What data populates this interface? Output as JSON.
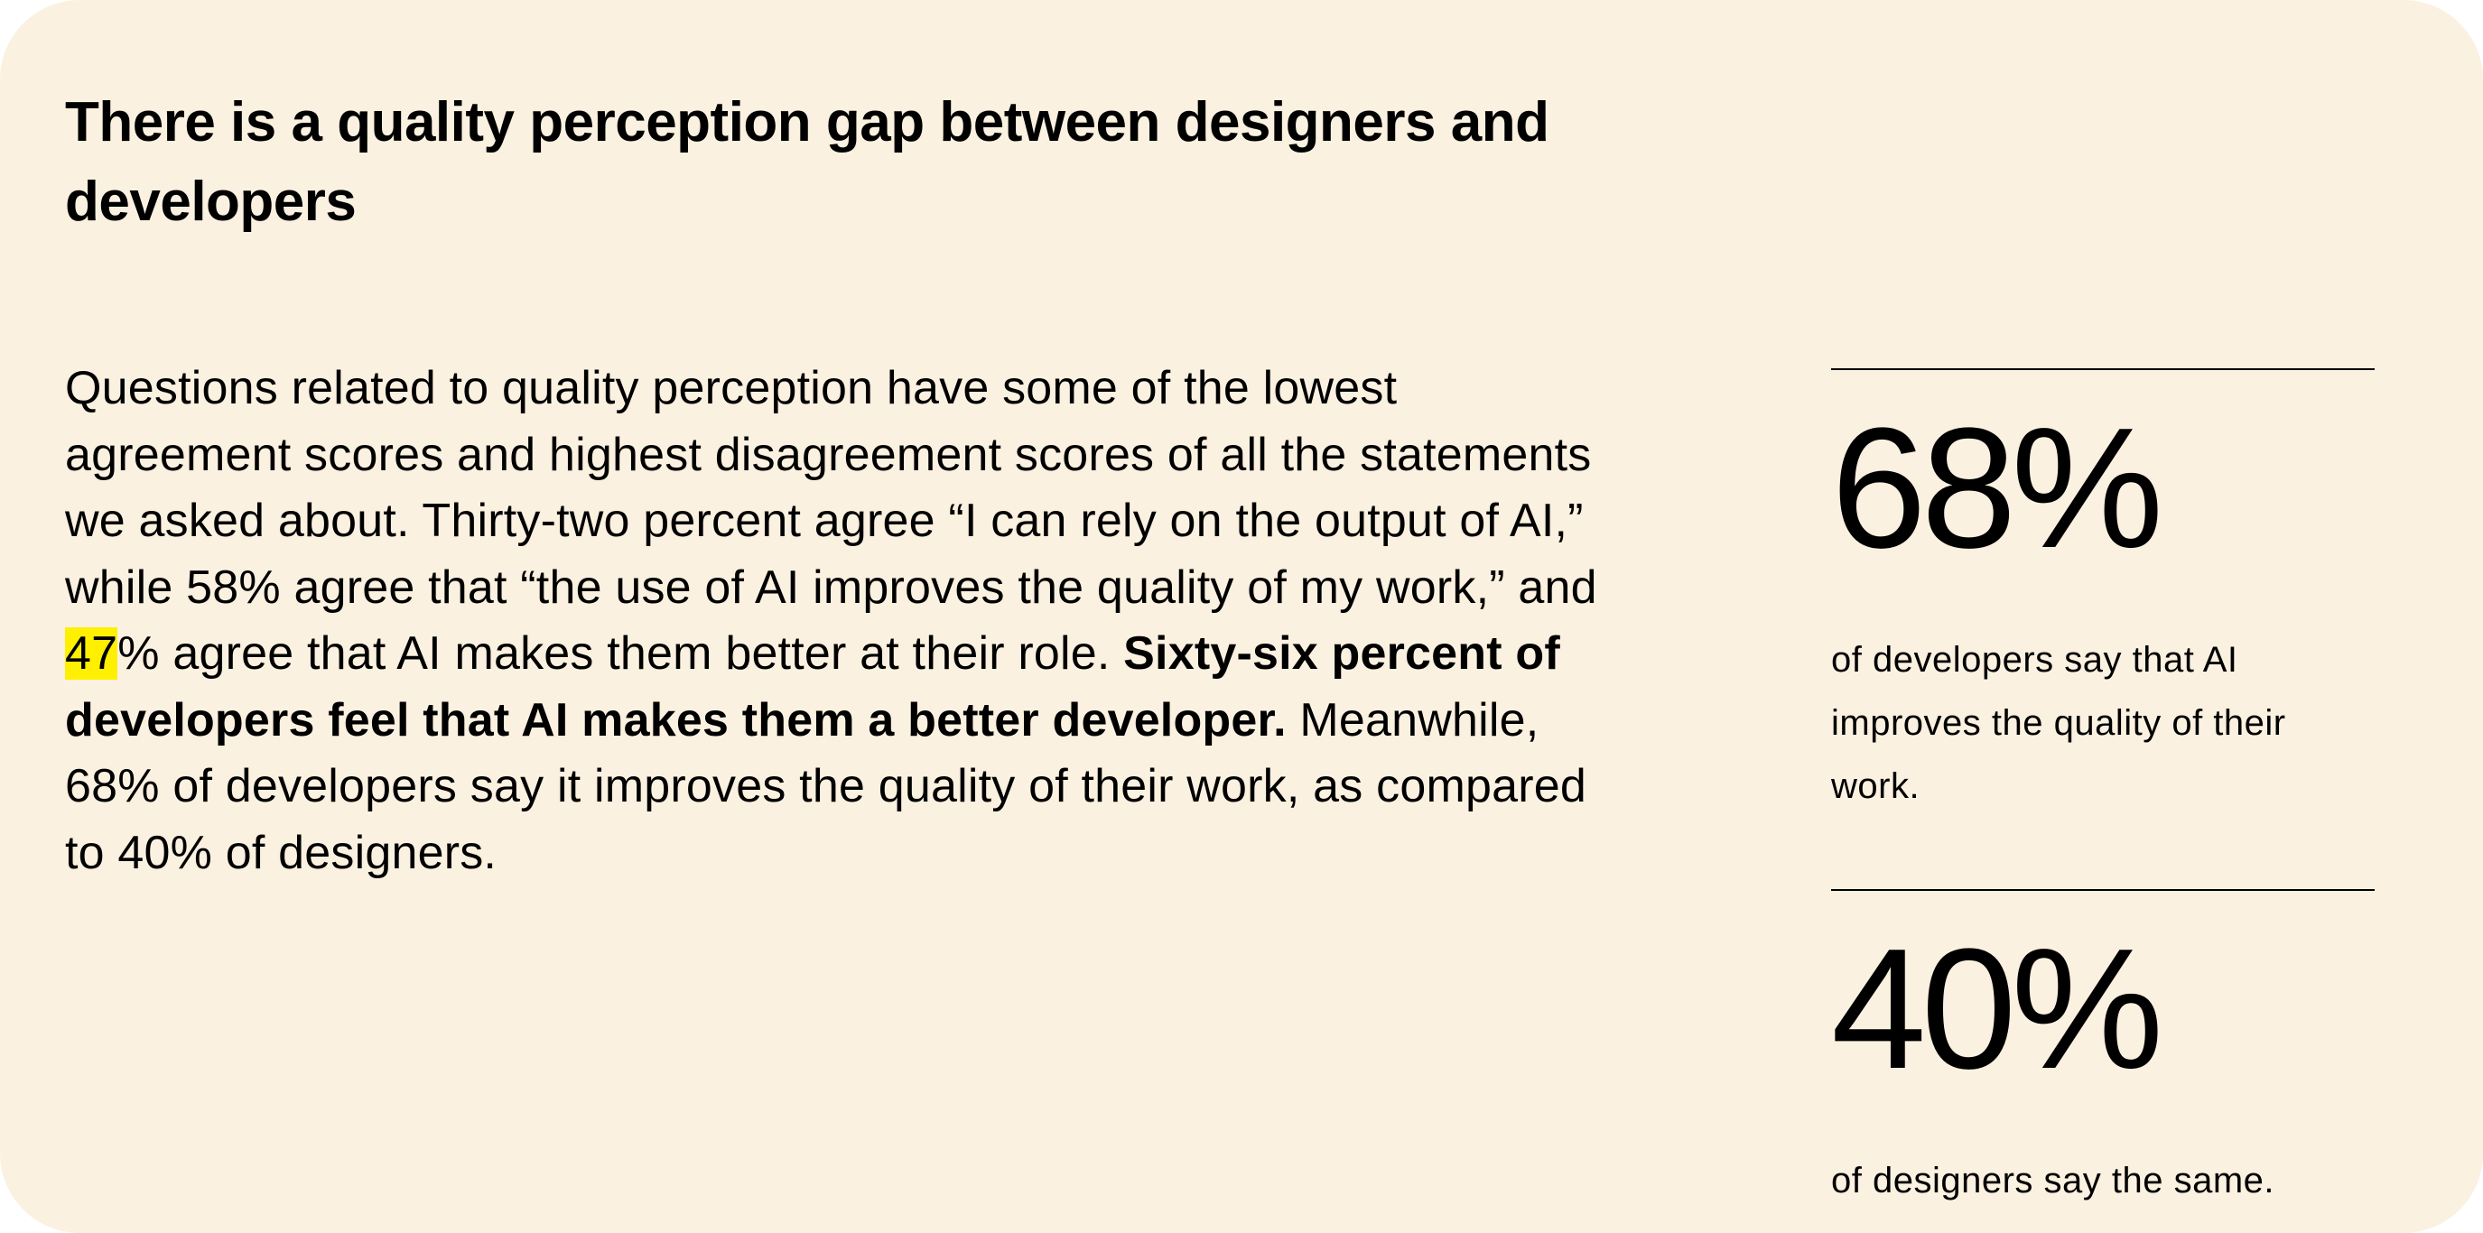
{
  "colors": {
    "card_background": "#fbf1e0",
    "highlight": "#ffef00",
    "text": "#000000"
  },
  "heading": "There is a quality perception gap between designers and developers",
  "body": {
    "part1": "Questions related to quality perception have some of the lowest agreement scores and highest disagreement scores of all the statements we asked about. Thirty-two percent agree “I can rely on the output of AI,” while 58% agree that “the use of AI improves the quality of my work,” and ",
    "highlighted": "47",
    "part2": "% agree that AI makes them better at their role. ",
    "bold": "Sixty-six percent of developers feel that AI makes them a better developer.",
    "part3": " Meanwhile, 68% of developers say it improves the quality of their work, as compared to 40% of designers."
  },
  "stats": [
    {
      "value": "68%",
      "caption": "of developers say that AI improves the quality of their work."
    },
    {
      "value": "40%",
      "caption": "of designers say the same."
    }
  ]
}
